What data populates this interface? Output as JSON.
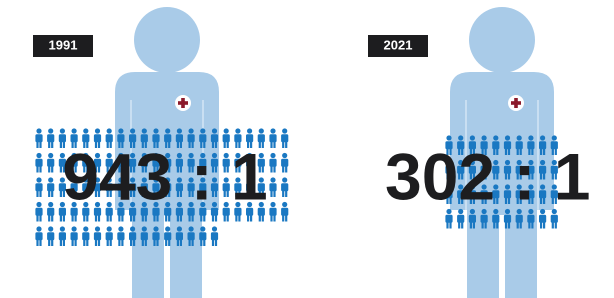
{
  "panels": [
    {
      "year": "1991",
      "ratio": "943 : 1"
    },
    {
      "year": "2021",
      "ratio": "302 : 1"
    }
  ]
}
